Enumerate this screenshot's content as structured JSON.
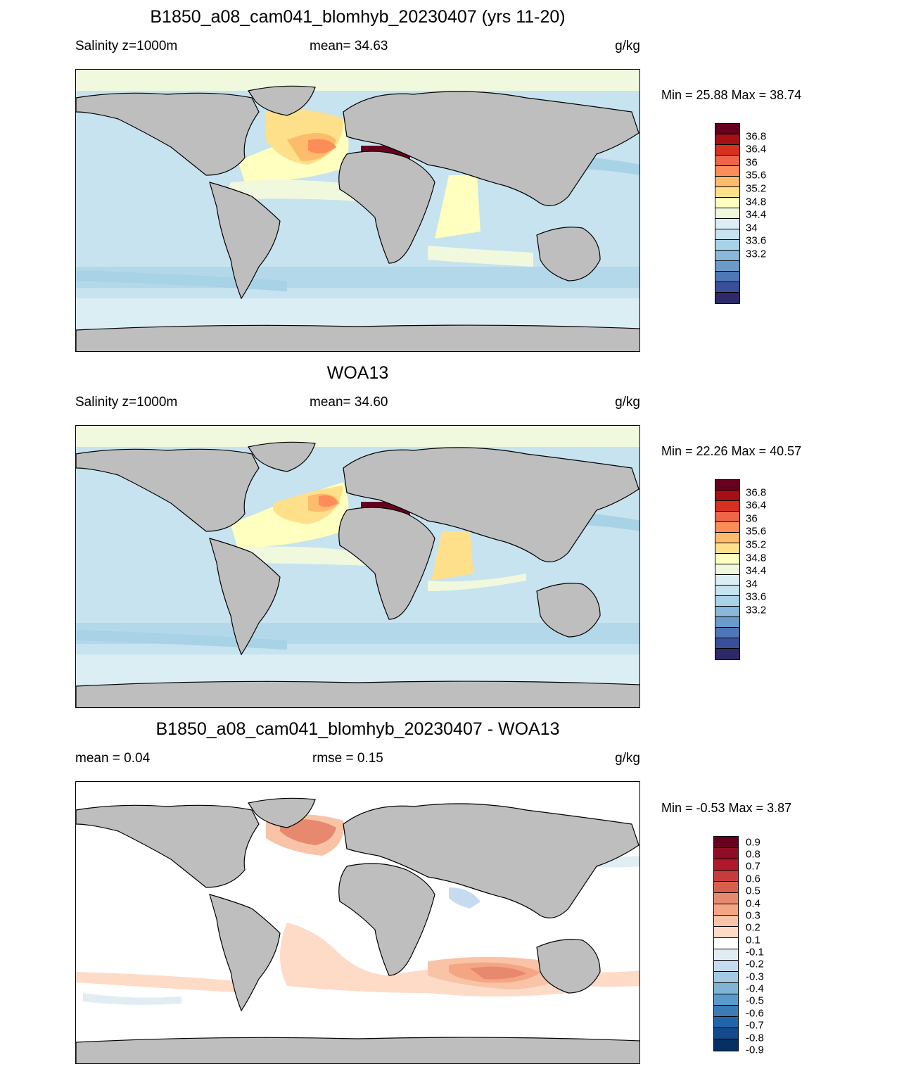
{
  "panels": [
    {
      "title": "B1850_a08_cam041_blomhyb_20230407 (yrs 11-20)",
      "left_label": "Salinity z=1000m",
      "mid_label": "mean=  34.63",
      "units": "g/kg",
      "minmax": "Min =  25.88 Max =  38.74",
      "colorbar": {
        "labels": [
          "36.8",
          "36.4",
          "36",
          "35.6",
          "35.2",
          "34.8",
          "34.4",
          "34",
          "33.6",
          "33.2"
        ],
        "colors": [
          "#67001f",
          "#a50f15",
          "#d7301f",
          "#ef6548",
          "#fc8d59",
          "#fdbb6c",
          "#fee08b",
          "#ffffbf",
          "#f0f9dd",
          "#dbeef4",
          "#c6e3ef",
          "#a8d2e6",
          "#8ab8da",
          "#6a9bcb",
          "#4f77b5",
          "#3a4f9a",
          "#2e2a6a"
        ]
      }
    },
    {
      "title": "WOA13",
      "left_label": "Salinity z=1000m",
      "mid_label": "mean=  34.60",
      "units": "g/kg",
      "minmax": "Min =  22.26 Max =  40.57",
      "colorbar": {
        "labels": [
          "36.8",
          "36.4",
          "36",
          "35.6",
          "35.2",
          "34.8",
          "34.4",
          "34",
          "33.6",
          "33.2"
        ],
        "colors": [
          "#67001f",
          "#a50f15",
          "#d7301f",
          "#ef6548",
          "#fc8d59",
          "#fdbb6c",
          "#fee08b",
          "#ffffbf",
          "#f0f9dd",
          "#dbeef4",
          "#c6e3ef",
          "#a8d2e6",
          "#8ab8da",
          "#6a9bcb",
          "#4f77b5",
          "#3a4f9a",
          "#2e2a6a"
        ]
      }
    },
    {
      "title": "B1850_a08_cam041_blomhyb_20230407 - WOA13",
      "left_label": "mean =   0.04",
      "mid_label": "rmse =   0.15",
      "units": "g/kg",
      "minmax": "Min =  -0.53 Max =   3.87",
      "colorbar": {
        "labels": [
          "0.9",
          "0.8",
          "0.7",
          "0.6",
          "0.5",
          "0.4",
          "0.3",
          "0.2",
          "0.1",
          "-0.1",
          "-0.2",
          "-0.3",
          "-0.4",
          "-0.5",
          "-0.6",
          "-0.7",
          "-0.8",
          "-0.9"
        ],
        "colors": [
          "#67001f",
          "#8e0d24",
          "#b2182b",
          "#c63c3c",
          "#d6604d",
          "#e7896e",
          "#f4a582",
          "#f8c3a6",
          "#fddbc7",
          "#ffffff",
          "#e1ecf3",
          "#c6dbef",
          "#a3c9e3",
          "#7fb4d7",
          "#5a99c9",
          "#3a7bb8",
          "#2166ac",
          "#124a8a",
          "#053061"
        ]
      }
    }
  ]
}
